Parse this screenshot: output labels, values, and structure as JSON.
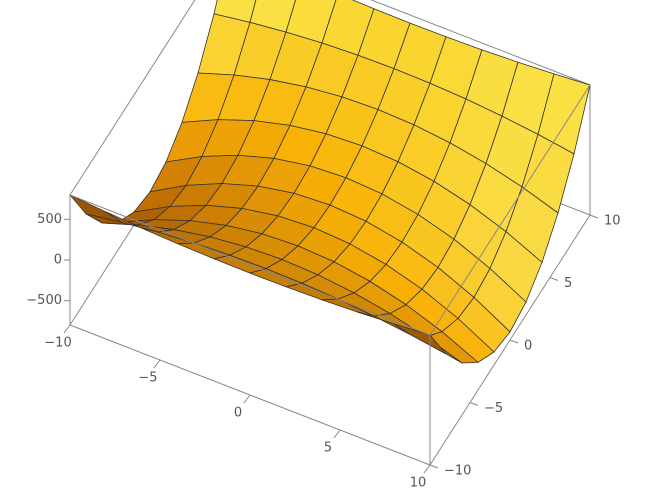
{
  "chart_data": {
    "type": "surface3d",
    "x": [
      -10,
      -8,
      -6,
      -4,
      -2,
      0,
      2,
      4,
      6,
      8,
      10
    ],
    "y": [
      -10,
      -8,
      -6,
      -4,
      -2,
      0,
      2,
      4,
      6,
      8,
      10
    ],
    "z": [
      [
        800,
        260,
        -160,
        -460,
        -640,
        -700,
        -640,
        -460,
        -160,
        260,
        800
      ],
      [
        764,
        328,
        -12,
        -254,
        -400,
        -448,
        -400,
        -254,
        -12,
        328,
        764
      ],
      [
        736,
        380,
        104,
        -94,
        -212,
        -252,
        -212,
        -94,
        104,
        380,
        736
      ],
      [
        716,
        418,
        186,
        20,
        -79,
        -112,
        -79,
        20,
        186,
        418,
        716
      ],
      [
        704,
        440,
        236,
        89,
        1,
        -28,
        1,
        89,
        236,
        440,
        704
      ],
      [
        700,
        448,
        252,
        112,
        28,
        0,
        28,
        112,
        252,
        448,
        700
      ],
      [
        704,
        440,
        236,
        89,
        1,
        -28,
        1,
        89,
        236,
        440,
        704
      ],
      [
        716,
        418,
        186,
        20,
        -79,
        -112,
        -79,
        20,
        186,
        418,
        716
      ],
      [
        736,
        380,
        104,
        -94,
        -212,
        -252,
        -212,
        -94,
        104,
        380,
        736
      ],
      [
        764,
        328,
        -12,
        -254,
        -400,
        -448,
        -400,
        -254,
        -12,
        328,
        764
      ],
      [
        800,
        260,
        -160,
        -460,
        -640,
        -700,
        -640,
        -460,
        -160,
        260,
        800
      ]
    ],
    "xlim": [
      -10,
      10
    ],
    "ylim": [
      -10,
      10
    ],
    "zlim": [
      -800,
      800
    ],
    "xticks": [
      {
        "value": -10,
        "label": "−10"
      },
      {
        "value": -5,
        "label": "−5"
      },
      0,
      5,
      10
    ],
    "yticks": [
      {
        "value": -10,
        "label": "−10"
      },
      {
        "value": -5,
        "label": "−5"
      },
      0,
      5,
      10
    ],
    "zticks": [
      {
        "value": -500,
        "label": "−500"
      },
      0,
      500
    ],
    "color": "#f5a623"
  }
}
